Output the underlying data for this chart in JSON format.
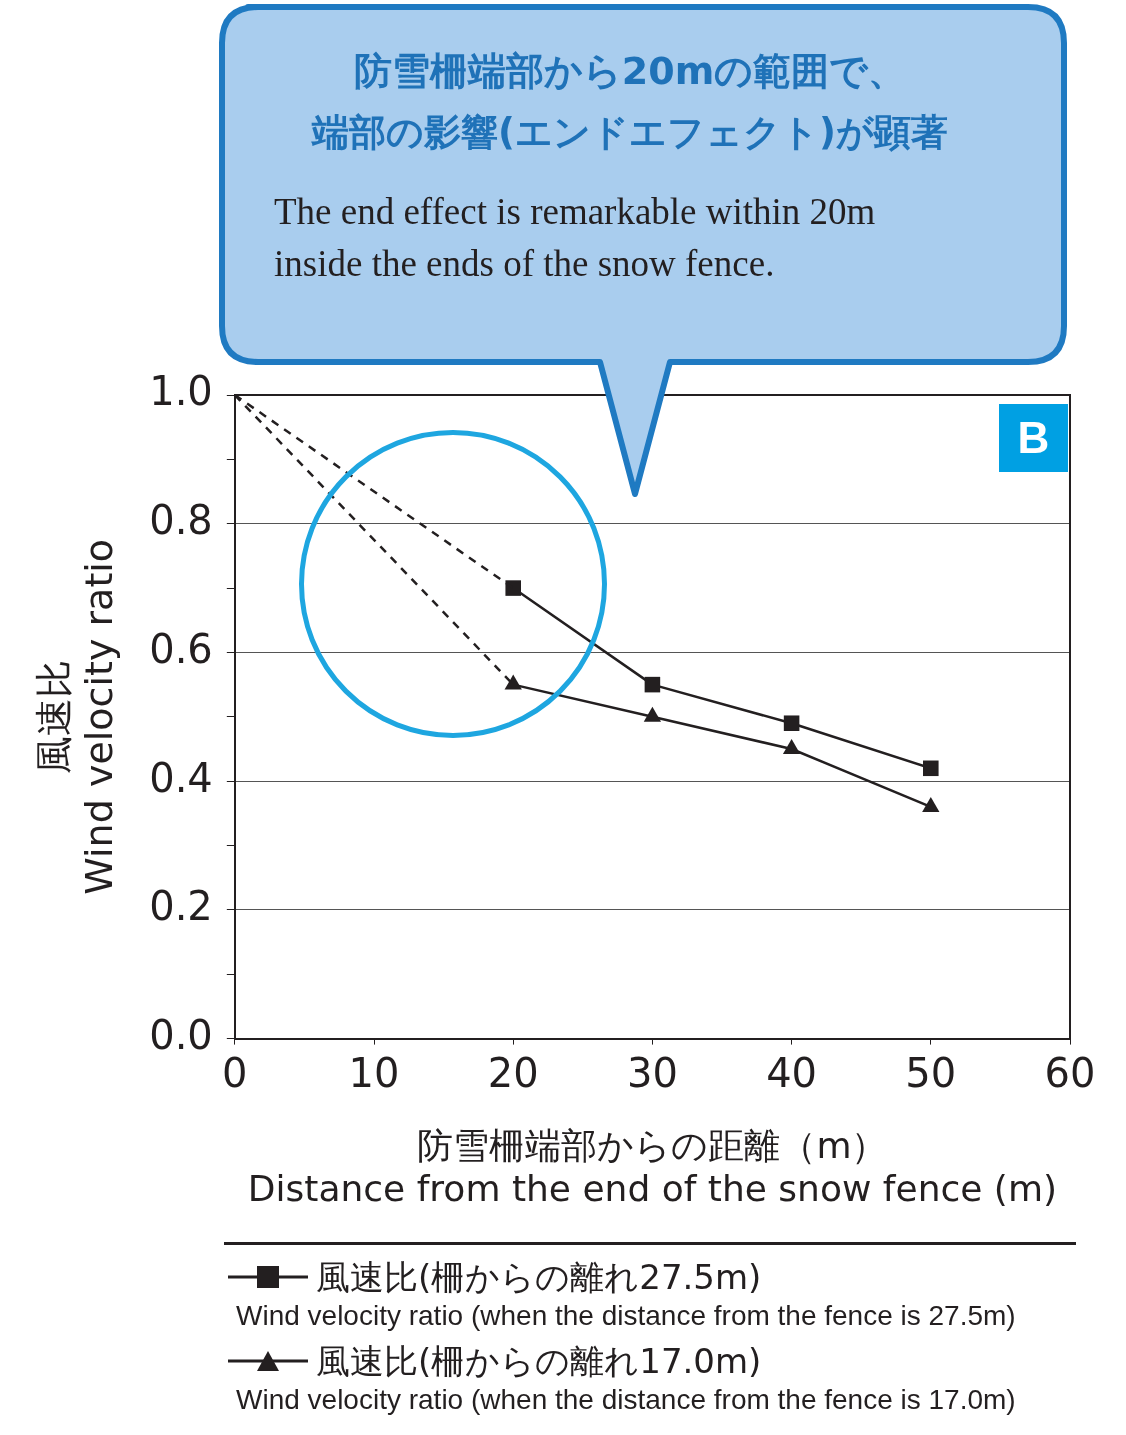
{
  "chart_data": {
    "type": "line",
    "xlabel": "防雪柵端部からの距離（m）\nDistance from the end of the snow fence (m)",
    "ylabel": "風速比\nWind velocity ratio",
    "xlim": [
      0,
      60
    ],
    "xticks": [
      0,
      10,
      20,
      30,
      40,
      50,
      60
    ],
    "ylim": [
      0,
      1
    ],
    "yticks": [
      {
        "value": 0,
        "label": "0.0"
      },
      {
        "value": 0.1,
        "label": null
      },
      {
        "value": 0.2,
        "label": "0.2"
      },
      {
        "value": 0.3,
        "label": null
      },
      {
        "value": 0.4,
        "label": "0.4"
      },
      {
        "value": 0.5,
        "label": null
      },
      {
        "value": 0.6,
        "label": "0.6"
      },
      {
        "value": 0.7,
        "label": null
      },
      {
        "value": 0.8,
        "label": "0.8"
      },
      {
        "value": 0.9,
        "label": null
      },
      {
        "value": 1,
        "label": "1.0"
      }
    ],
    "grid": "y",
    "legend": "bottom",
    "series": [
      {
        "type": "line",
        "x": [
          0,
          20
        ],
        "values": [
          1.0,
          0.7
        ],
        "color": "#231f20",
        "line_style": "dashed"
      },
      {
        "type": "line",
        "x": [
          0,
          20
        ],
        "values": [
          1.0,
          0.55
        ],
        "color": "#231f20",
        "line_style": "dashed"
      },
      {
        "type": "line",
        "name": "風速比(柵からの離れ27.5m)\nWind velocity ratio (when the distance from the fence is 27.5m)",
        "x": [
          20,
          30,
          40,
          50
        ],
        "values": [
          0.7,
          0.55,
          0.49,
          0.42
        ],
        "color": "#231f20",
        "marker": "square",
        "line_style": "solid"
      },
      {
        "type": "line",
        "name": "風速比(柵からの離れ17.0m)\nWind velocity ratio (when the distance from the fence is 17.0m)",
        "x": [
          20,
          30,
          40,
          50
        ],
        "values": [
          0.55,
          0.5,
          0.45,
          0.36
        ],
        "color": "#231f20",
        "marker": "triangle",
        "line_style": "solid"
      }
    ],
    "annotations": [
      "防雪柵端部から20mの範囲で、",
      "端部の影響(エンドエフェクト)が顕著",
      "The end effect is remarkable within 20m\ninside the ends of the snow fence.",
      "B"
    ]
  }
}
